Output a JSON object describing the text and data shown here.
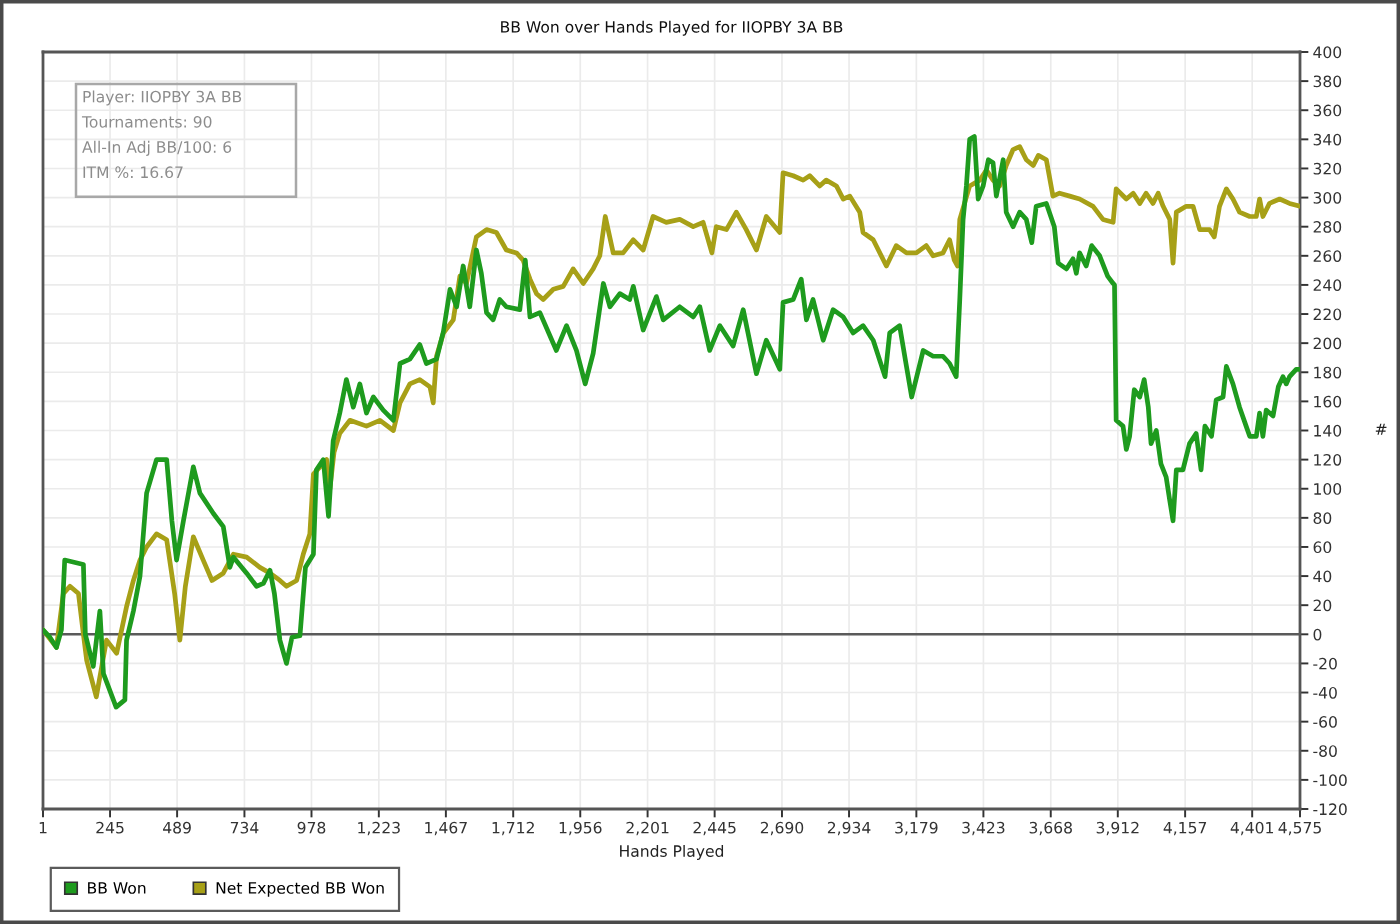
{
  "chart_data": {
    "type": "line",
    "title": "BB Won over Hands Played for IIOPBY 3A BB",
    "xlabel": "Hands Played",
    "ylabel": "#",
    "annotations": [
      "Player: IIOPBY 3A BB",
      "Tournaments: 90",
      "All-In Adj BB/100: 6",
      "ITM %: 16.67"
    ],
    "series": [
      {
        "name": "BB Won",
        "color": "#1e9b1e",
        "x": [
          1,
          26,
          50,
          68,
          80,
          148,
          155,
          184,
          208,
          221,
          267,
          299,
          305,
          330,
          354,
          378,
          414,
          451,
          470,
          487,
          512,
          548,
          572,
          621,
          657,
          681,
          694,
          742,
          778,
          803,
          827,
          843,
          863,
          887,
          907,
          936,
          956,
          985,
          996,
          1021,
          1040,
          1057,
          1081,
          1105,
          1130,
          1154,
          1178,
          1203,
          1239,
          1276,
          1300,
          1336,
          1372,
          1396,
          1433,
          1458,
          1482,
          1506,
          1530,
          1554,
          1578,
          1596,
          1615,
          1639,
          1663,
          1687,
          1736,
          1756,
          1773,
          1809,
          1869,
          1906,
          1942,
          1974,
          2003,
          2040,
          2064,
          2100,
          2136,
          2149,
          2185,
          2233,
          2258,
          2318,
          2367,
          2391,
          2427,
          2464,
          2512,
          2549,
          2597,
          2633,
          2682,
          2694,
          2731,
          2760,
          2779,
          2803,
          2840,
          2876,
          2913,
          2949,
          2985,
          3022,
          3065,
          3082,
          3118,
          3143,
          3162,
          3204,
          3240,
          3276,
          3300,
          3324,
          3337,
          3349,
          3361,
          3373,
          3390,
          3404,
          3422,
          3441,
          3458,
          3470,
          3495,
          3506,
          3531,
          3555,
          3579,
          3599,
          3615,
          3652,
          3681,
          3695,
          3725,
          3749,
          3761,
          3773,
          3797,
          3817,
          3846,
          3875,
          3895,
          3900,
          3906,
          3931,
          3943,
          3955,
          3972,
          3992,
          4008,
          4023,
          4033,
          4052,
          4069,
          4088,
          4101,
          4113,
          4125,
          4149,
          4173,
          4197,
          4215,
          4229,
          4253,
          4270,
          4295,
          4307,
          4331,
          4355,
          4379,
          4392,
          4416,
          4428,
          4440,
          4452,
          4477,
          4496,
          4513,
          4525,
          4537,
          4561,
          4575
        ],
        "values": [
          3,
          -2,
          -9,
          3,
          51,
          48,
          0,
          -22,
          16,
          -27,
          -50,
          -45,
          -4,
          16,
          40,
          97,
          120,
          120,
          78,
          51,
          78,
          115,
          97,
          83,
          74,
          46,
          53,
          42,
          33,
          35,
          44,
          28,
          -4,
          -20,
          -2,
          -1,
          46,
          55,
          113,
          120,
          81,
          133,
          152,
          175,
          156,
          172,
          152,
          163,
          154,
          147,
          186,
          189,
          199,
          186,
          189,
          208,
          237,
          225,
          253,
          225,
          264,
          248,
          221,
          216,
          230,
          225,
          223,
          257,
          218,
          221,
          195,
          212,
          195,
          172,
          193,
          241,
          225,
          234,
          230,
          239,
          209,
          232,
          216,
          225,
          218,
          225,
          195,
          212,
          198,
          223,
          179,
          202,
          182,
          228,
          230,
          244,
          216,
          230,
          202,
          223,
          218,
          207,
          212,
          202,
          177,
          207,
          212,
          184,
          163,
          195,
          191,
          191,
          186,
          177,
          230,
          285,
          308,
          340,
          342,
          299,
          308,
          326,
          324,
          301,
          326,
          290,
          280,
          290,
          285,
          269,
          294,
          296,
          280,
          255,
          251,
          258,
          248,
          262,
          253,
          267,
          260,
          246,
          241,
          240,
          147,
          143,
          127,
          136,
          168,
          163,
          175,
          156,
          131,
          140,
          117,
          108,
          92,
          78,
          113,
          113,
          131,
          138,
          113,
          143,
          136,
          161,
          163,
          184,
          172,
          156,
          143,
          136,
          136,
          152,
          136,
          154,
          150,
          170,
          177,
          172,
          177,
          182,
          182
        ]
      },
      {
        "name": "Net Expected BB Won",
        "color": "#a7a017",
        "x": [
          1,
          50,
          75,
          99,
          130,
          148,
          160,
          195,
          232,
          269,
          305,
          330,
          354,
          378,
          414,
          451,
          480,
          499,
          519,
          548,
          584,
          616,
          657,
          694,
          742,
          790,
          827,
          863,
          887,
          924,
          948,
          972,
          985,
          1033,
          1045,
          1060,
          1081,
          1118,
          1178,
          1227,
          1276,
          1300,
          1336,
          1372,
          1409,
          1421,
          1433,
          1458,
          1494,
          1518,
          1542,
          1578,
          1615,
          1651,
          1687,
          1724,
          1748,
          1773,
          1797,
          1821,
          1858,
          1894,
          1930,
          1967,
          2003,
          2027,
          2047,
          2076,
          2112,
          2149,
          2185,
          2221,
          2269,
          2318,
          2367,
          2403,
          2435,
          2451,
          2488,
          2524,
          2560,
          2597,
          2633,
          2682,
          2694,
          2731,
          2767,
          2791,
          2827,
          2851,
          2888,
          2913,
          2937,
          2973,
          2985,
          3022,
          3070,
          3106,
          3143,
          3179,
          3215,
          3240,
          3276,
          3300,
          3317,
          3329,
          3337,
          3373,
          3410,
          3434,
          3458,
          3482,
          3506,
          3531,
          3555,
          3579,
          3604,
          3623,
          3652,
          3676,
          3700,
          3737,
          3773,
          3822,
          3858,
          3895,
          3906,
          3943,
          3968,
          3992,
          4015,
          4040,
          4059,
          4077,
          4101,
          4113,
          4125,
          4161,
          4186,
          4210,
          4246,
          4263,
          4282,
          4307,
          4331,
          4355,
          4392,
          4416,
          4428,
          4440,
          4464,
          4501,
          4537,
          4575
        ],
        "values": [
          3,
          -9,
          28,
          33,
          28,
          0,
          -18,
          -43,
          -4,
          -13,
          19,
          37,
          51,
          60,
          69,
          65,
          28,
          -4,
          33,
          67,
          51,
          37,
          42,
          55,
          53,
          46,
          42,
          37,
          33,
          37,
          55,
          69,
          110,
          120,
          100,
          125,
          138,
          147,
          143,
          147,
          140,
          159,
          172,
          175,
          170,
          159,
          191,
          207,
          216,
          246,
          241,
          273,
          278,
          276,
          264,
          262,
          257,
          244,
          234,
          230,
          237,
          239,
          251,
          241,
          251,
          260,
          287,
          262,
          262,
          271,
          264,
          287,
          283,
          285,
          280,
          283,
          262,
          280,
          278,
          290,
          278,
          264,
          287,
          276,
          317,
          315,
          312,
          315,
          308,
          312,
          308,
          299,
          301,
          290,
          276,
          271,
          253,
          267,
          262,
          262,
          267,
          260,
          262,
          271,
          257,
          253,
          285,
          308,
          312,
          319,
          312,
          308,
          322,
          333,
          335,
          326,
          322,
          329,
          326,
          301,
          303,
          301,
          299,
          294,
          285,
          283,
          306,
          299,
          303,
          296,
          303,
          296,
          303,
          294,
          285,
          255,
          290,
          294,
          294,
          278,
          278,
          273,
          294,
          306,
          299,
          290,
          287,
          287,
          299,
          287,
          296,
          299,
          296,
          294
        ]
      }
    ],
    "xlim": [
      1,
      4575
    ],
    "xticks": [
      1,
      245,
      489,
      734,
      978,
      {
        "value": 1223,
        "label": "1,223"
      },
      {
        "value": 1467,
        "label": "1,467"
      },
      {
        "value": 1712,
        "label": "1,712"
      },
      {
        "value": 1956,
        "label": "1,956"
      },
      {
        "value": 2201,
        "label": "2,201"
      },
      {
        "value": 2445,
        "label": "2,445"
      },
      {
        "value": 2690,
        "label": "2,690"
      },
      {
        "value": 2934,
        "label": "2,934"
      },
      {
        "value": 3179,
        "label": "3,179"
      },
      {
        "value": 3423,
        "label": "3,423"
      },
      {
        "value": 3668,
        "label": "3,668"
      },
      {
        "value": 3912,
        "label": "3,912"
      },
      {
        "value": 4157,
        "label": "4,157"
      },
      {
        "value": 4401,
        "label": "4,401"
      },
      {
        "value": 4575,
        "label": "4,575"
      }
    ],
    "ylim": [
      -120,
      400
    ],
    "yticks": [
      -120,
      -100,
      -80,
      -60,
      -40,
      -20,
      0,
      20,
      40,
      60,
      80,
      100,
      120,
      140,
      160,
      180,
      200,
      220,
      240,
      260,
      280,
      300,
      320,
      340,
      360,
      380,
      400
    ],
    "grid": true,
    "legend": "bottom left",
    "line_style": "solid",
    "ref_lines": [
      {
        "axis": "y",
        "value": 0,
        "color": "#5a5a5a"
      }
    ]
  }
}
